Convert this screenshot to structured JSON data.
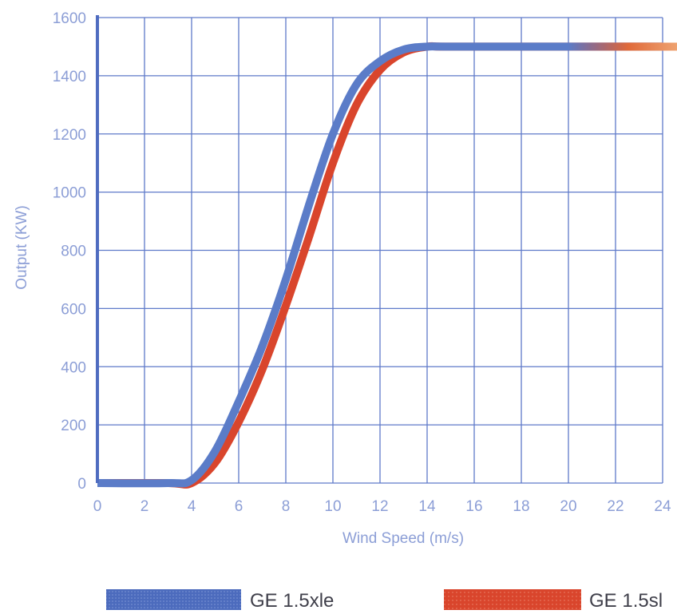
{
  "chart_data": {
    "type": "line",
    "xlabel": "Wind Speed (m/s)",
    "ylabel": "Output (KW)",
    "xlim": [
      0,
      24
    ],
    "ylim": [
      0,
      1600
    ],
    "x_ticks": [
      "0",
      "2",
      "4",
      "6",
      "8",
      "10",
      "12",
      "14",
      "16",
      "18",
      "20",
      "22",
      "24"
    ],
    "y_ticks": [
      "0",
      "200",
      "400",
      "600",
      "800",
      "1000",
      "1200",
      "1400",
      "1600"
    ],
    "grid": true,
    "legend_position": "bottom",
    "series": [
      {
        "name": "GE 1.5xle",
        "color": "#5b7cc8",
        "x": [
          0,
          3,
          4,
          5,
          6,
          7,
          8,
          9,
          10,
          11,
          12,
          13,
          14,
          15,
          20,
          24
        ],
        "y": [
          0,
          0,
          10,
          110,
          280,
          470,
          700,
          960,
          1200,
          1370,
          1450,
          1490,
          1500,
          1500,
          1500,
          1500
        ]
      },
      {
        "name": "GE 1.5sl",
        "color": "#d9452c",
        "x": [
          0,
          3,
          4,
          5,
          6,
          7,
          8,
          9,
          10,
          11,
          12,
          13,
          14,
          15,
          20,
          24
        ],
        "y": [
          0,
          0,
          0,
          70,
          210,
          390,
          610,
          850,
          1100,
          1300,
          1420,
          1480,
          1500,
          1500,
          1500,
          1500
        ]
      }
    ]
  }
}
